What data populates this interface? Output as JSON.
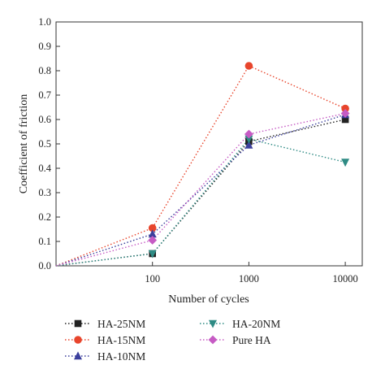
{
  "chart_data": {
    "type": "line",
    "xscale": "log",
    "x": [
      10,
      100,
      1000,
      10000
    ],
    "xticks": [
      "100",
      "1000",
      "10000"
    ],
    "xlim": [
      10,
      15000
    ],
    "ylim": [
      0,
      1.0
    ],
    "yticks": [
      "0.0",
      "0.1",
      "0.2",
      "0.3",
      "0.4",
      "0.5",
      "0.6",
      "0.7",
      "0.8",
      "0.9",
      "1.0"
    ],
    "xlabel": "Number of cycles",
    "ylabel": "Coefficient of friction",
    "grid": false,
    "legend_position": "bottom",
    "series": [
      {
        "name": "HA-25NM",
        "color": "#222222",
        "marker": "square",
        "values": [
          0,
          0.05,
          0.51,
          0.6
        ]
      },
      {
        "name": "HA-15NM",
        "color": "#e8452c",
        "marker": "circle",
        "values": [
          0,
          0.155,
          0.82,
          0.645
        ]
      },
      {
        "name": "HA-10NM",
        "color": "#3b3f9c",
        "marker": "triangle-up",
        "values": [
          0,
          0.13,
          0.495,
          0.62
        ]
      },
      {
        "name": "HA-20NM",
        "color": "#2e8b84",
        "marker": "triangle-down",
        "values": [
          0,
          0.05,
          0.52,
          0.425
        ]
      },
      {
        "name": "Pure HA",
        "color": "#c65bc4",
        "marker": "diamond",
        "values": [
          0,
          0.105,
          0.54,
          0.625
        ]
      }
    ]
  }
}
